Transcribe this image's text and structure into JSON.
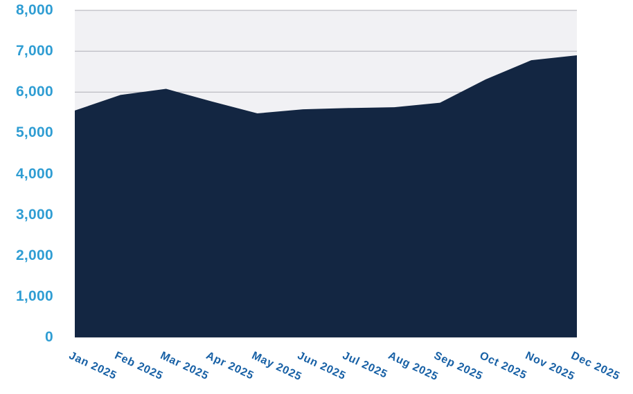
{
  "chart_data": {
    "type": "area",
    "categories": [
      "Jan 2025",
      "Feb 2025",
      "Mar 2025",
      "Apr 2025",
      "May 2025",
      "Jun 2025",
      "Jul 2025",
      "Aug 2025",
      "Sep 2025",
      "Oct 2025",
      "Nov 2025",
      "Dec 2025"
    ],
    "values": [
      5550,
      5930,
      6080,
      5770,
      5480,
      5580,
      5610,
      5630,
      5740,
      6310,
      6780,
      6900
    ],
    "title": "",
    "xlabel": "",
    "ylabel": "",
    "ylim": [
      0,
      8000
    ],
    "y_tick_interval": 1000,
    "y_tick_labels": [
      "0",
      "1,000",
      "2,000",
      "3,000",
      "4,000",
      "5,000",
      "6,000",
      "7,000",
      "8,000"
    ],
    "x_label_rotation_deg": 25,
    "grid": true,
    "legend": false,
    "colors": {
      "area_fill": "#132642",
      "plot_background": "#F1F1F4",
      "gridline": "#ADADB5",
      "y_label": "#2F9DD3",
      "x_label": "#1760A5",
      "page_background": "#FFFFFF"
    }
  }
}
